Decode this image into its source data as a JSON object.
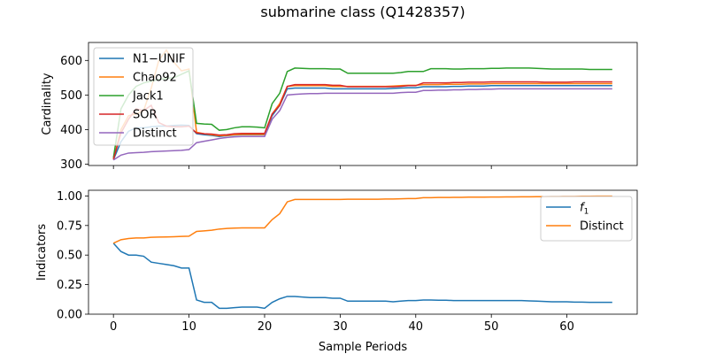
{
  "chart_data": {
    "title": "submarine class (Q1428357)",
    "xlabel": "Sample Periods",
    "x_ticks": [
      0,
      10,
      20,
      30,
      40,
      50,
      60
    ],
    "x_range": [
      -3.3,
      69.3
    ],
    "panels": [
      {
        "type": "line",
        "ylabel": "Cardinality",
        "ylim": [
          296,
          652
        ],
        "y_ticks": [
          300,
          400,
          500,
          600
        ],
        "legend_position": "upper-left",
        "grid": false,
        "series": [
          {
            "name": "N1−UNIF",
            "color": "#1f77b4",
            "values": [
              313,
              365,
              395,
              405,
              405,
              408,
              410,
              410,
              412,
              413,
              412,
              388,
              385,
              383,
              380,
              382,
              384,
              385,
              385,
              385,
              385,
              440,
              470,
              518,
              520,
              520,
              520,
              520,
              520,
              518,
              518,
              518,
              518,
              518,
              518,
              518,
              518,
              519,
              520,
              521,
              521,
              524,
              524,
              524,
              524,
              525,
              525,
              526,
              526,
              526,
              527,
              527,
              527,
              527,
              527,
              527,
              527,
              527,
              527,
              527,
              527,
              527,
              527,
              527,
              527,
              527,
              527
            ]
          },
          {
            "name": "Chao92",
            "color": "#ff7f0e",
            "values": [
              313,
              400,
              440,
              445,
              455,
              520,
              600,
              630,
              595,
              570,
              575,
              392,
              388,
              385,
              382,
              383,
              385,
              386,
              386,
              386,
              386,
              445,
              475,
              525,
              527,
              527,
              527,
              527,
              527,
              525,
              525,
              525,
              525,
              525,
              525,
              525,
              525,
              526,
              527,
              528,
              528,
              530,
              530,
              530,
              531,
              531,
              531,
              532,
              532,
              532,
              533,
              533,
              533,
              533,
              533,
              533,
              533,
              533,
              533,
              533,
              533,
              533,
              533,
              533,
              533,
              533,
              533
            ]
          },
          {
            "name": "Jack1",
            "color": "#2ca02c",
            "values": [
              318,
              460,
              500,
              525,
              535,
              540,
              545,
              548,
              550,
              560,
              570,
              418,
              416,
              415,
              398,
              400,
              405,
              408,
              408,
              407,
              405,
              475,
              505,
              568,
              578,
              577,
              576,
              576,
              576,
              575,
              575,
              563,
              563,
              563,
              563,
              563,
              563,
              563,
              565,
              568,
              568,
              568,
              576,
              576,
              576,
              575,
              575,
              576,
              576,
              576,
              577,
              577,
              578,
              578,
              578,
              578,
              577,
              576,
              575,
              575,
              575,
              575,
              575,
              574,
              574,
              574,
              574
            ]
          },
          {
            "name": "SOR",
            "color": "#d62728",
            "values": [
              314,
              390,
              430,
              460,
              455,
              470,
              420,
              410,
              408,
              408,
              410,
              390,
              388,
              387,
              384,
              385,
              388,
              389,
              389,
              389,
              389,
              445,
              470,
              525,
              530,
              530,
              530,
              530,
              530,
              528,
              528,
              524,
              524,
              524,
              524,
              524,
              524,
              524,
              525,
              527,
              527,
              535,
              535,
              535,
              535,
              536,
              536,
              537,
              537,
              537,
              538,
              538,
              538,
              538,
              538,
              538,
              538,
              537,
              537,
              537,
              537,
              538,
              538,
              538,
              538,
              538,
              538
            ]
          },
          {
            "name": "Distinct",
            "color": "#9467bd",
            "values": [
              312,
              326,
              332,
              333,
              334,
              336,
              337,
              338,
              339,
              340,
              342,
              362,
              366,
              370,
              374,
              377,
              379,
              380,
              380,
              380,
              380,
              430,
              455,
              500,
              502,
              503,
              504,
              504,
              505,
              505,
              505,
              505,
              505,
              505,
              505,
              505,
              505,
              505,
              507,
              508,
              508,
              513,
              513,
              514,
              514,
              515,
              515,
              516,
              516,
              517,
              517,
              518,
              518,
              518,
              518,
              518,
              518,
              518,
              518,
              518,
              518,
              518,
              518,
              518,
              518,
              518,
              518
            ]
          }
        ]
      },
      {
        "type": "line",
        "ylabel": "Indicators",
        "ylim": [
          0.0,
          1.048
        ],
        "y_ticks": [
          "0.00",
          "0.25",
          "0.50",
          "0.75",
          "1.00"
        ],
        "y_tick_values": [
          0,
          0.25,
          0.5,
          0.75,
          1.0
        ],
        "legend_position": "upper-right",
        "grid": false,
        "series": [
          {
            "name_base": "f",
            "name_sub": "1",
            "color": "#1f77b4",
            "values": [
              0.6,
              0.53,
              0.5,
              0.5,
              0.49,
              0.44,
              0.43,
              0.42,
              0.41,
              0.39,
              0.39,
              0.12,
              0.1,
              0.1,
              0.05,
              0.05,
              0.055,
              0.06,
              0.06,
              0.06,
              0.05,
              0.1,
              0.13,
              0.15,
              0.15,
              0.145,
              0.14,
              0.14,
              0.14,
              0.135,
              0.135,
              0.11,
              0.11,
              0.11,
              0.11,
              0.11,
              0.11,
              0.105,
              0.11,
              0.115,
              0.115,
              0.12,
              0.12,
              0.118,
              0.118,
              0.115,
              0.115,
              0.115,
              0.115,
              0.115,
              0.115,
              0.115,
              0.115,
              0.115,
              0.115,
              0.112,
              0.11,
              0.108,
              0.105,
              0.105,
              0.105,
              0.102,
              0.102,
              0.1,
              0.1,
              0.1,
              0.1
            ]
          },
          {
            "name": "Distinct",
            "color": "#ff7f0e",
            "values": [
              0.6,
              0.63,
              0.64,
              0.645,
              0.645,
              0.65,
              0.652,
              0.653,
              0.655,
              0.658,
              0.66,
              0.7,
              0.705,
              0.71,
              0.72,
              0.725,
              0.728,
              0.73,
              0.73,
              0.73,
              0.73,
              0.8,
              0.85,
              0.95,
              0.97,
              0.97,
              0.97,
              0.97,
              0.97,
              0.97,
              0.97,
              0.972,
              0.972,
              0.972,
              0.972,
              0.972,
              0.974,
              0.974,
              0.976,
              0.978,
              0.978,
              0.985,
              0.985,
              0.987,
              0.987,
              0.988,
              0.988,
              0.99,
              0.99,
              0.99,
              0.991,
              0.991,
              0.992,
              0.992,
              0.993,
              0.993,
              0.994,
              0.994,
              0.995,
              0.995,
              0.996,
              0.996,
              0.997,
              0.997,
              0.998,
              0.998,
              0.998
            ]
          }
        ]
      }
    ]
  }
}
